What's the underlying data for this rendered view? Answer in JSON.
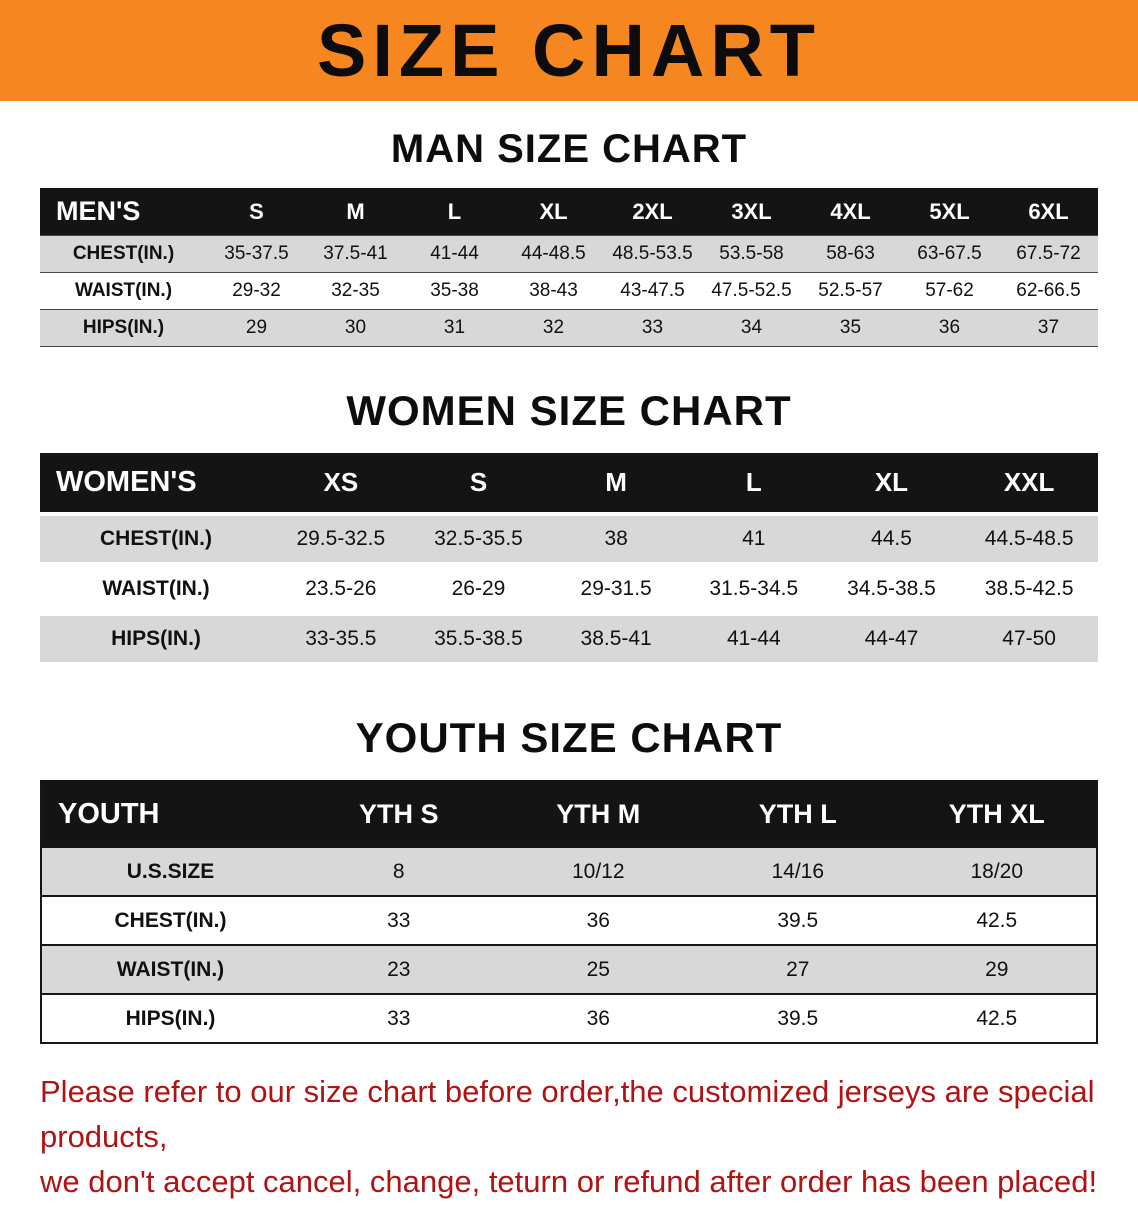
{
  "banner": {
    "title": "SIZE CHART"
  },
  "sections": [
    {
      "id": "men",
      "heading": "MAN SIZE CHART",
      "table": {
        "header": [
          "MEN'S",
          "S",
          "M",
          "L",
          "XL",
          "2XL",
          "3XL",
          "4XL",
          "5XL",
          "6XL"
        ],
        "rows": [
          [
            "CHEST(IN.)",
            "35-37.5",
            "37.5-41",
            "41-44",
            "44-48.5",
            "48.5-53.5",
            "53.5-58",
            "58-63",
            "63-67.5",
            "67.5-72"
          ],
          [
            "WAIST(IN.)",
            "29-32",
            "32-35",
            "35-38",
            "38-43",
            "43-47.5",
            "47.5-52.5",
            "52.5-57",
            "57-62",
            "62-66.5"
          ],
          [
            "HIPS(IN.)",
            "29",
            "30",
            "31",
            "32",
            "33",
            "34",
            "35",
            "36",
            "37"
          ]
        ]
      }
    },
    {
      "id": "women",
      "heading": "WOMEN SIZE CHART",
      "table": {
        "header": [
          "WOMEN'S",
          "XS",
          "S",
          "M",
          "L",
          "XL",
          "XXL"
        ],
        "rows": [
          [
            "CHEST(IN.)",
            "29.5-32.5",
            "32.5-35.5",
            "38",
            "41",
            "44.5",
            "44.5-48.5"
          ],
          [
            "WAIST(IN.)",
            "23.5-26",
            "26-29",
            "29-31.5",
            "31.5-34.5",
            "34.5-38.5",
            "38.5-42.5"
          ],
          [
            "HIPS(IN.)",
            "33-35.5",
            "35.5-38.5",
            "38.5-41",
            "41-44",
            "44-47",
            "47-50"
          ]
        ]
      }
    },
    {
      "id": "youth",
      "heading": "YOUTH SIZE CHART",
      "table": {
        "header": [
          "YOUTH",
          "YTH S",
          "YTH M",
          "YTH L",
          "YTH XL"
        ],
        "rows": [
          [
            "U.S.SIZE",
            "8",
            "10/12",
            "14/16",
            "18/20"
          ],
          [
            "CHEST(IN.)",
            "33",
            "36",
            "39.5",
            "42.5"
          ],
          [
            "WAIST(IN.)",
            "23",
            "25",
            "27",
            "29"
          ],
          [
            "HIPS(IN.)",
            "33",
            "36",
            "39.5",
            "42.5"
          ]
        ]
      }
    }
  ],
  "disclaimer": {
    "line1": "Please refer to our size chart before order,the customized jerseys are special products,",
    "line2": "we don't accept cancel, change, teturn or refund after order has been placed!"
  },
  "colors": {
    "banner_orange": "#f6861f",
    "table_header_black": "#141414",
    "stripe_gray": "#d8d8d8",
    "disclaimer_red": "#b11212"
  }
}
